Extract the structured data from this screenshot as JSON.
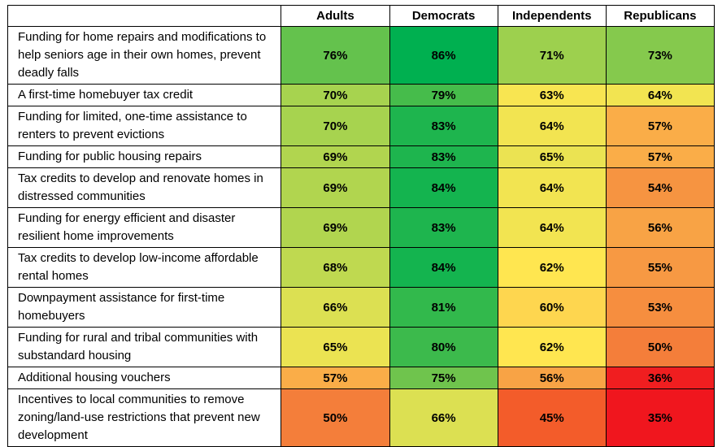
{
  "chart_data": {
    "type": "heatmap",
    "title": "",
    "value_suffix": "%",
    "columns": [
      "Adults",
      "Democrats",
      "Independents",
      "Republicans"
    ],
    "rows": [
      {
        "label": "Funding for home repairs and modifications to help seniors age in their own homes, prevent deadly falls",
        "values": [
          76,
          86,
          71,
          73
        ]
      },
      {
        "label": "A first-time homebuyer tax credit",
        "values": [
          70,
          79,
          63,
          64
        ]
      },
      {
        "label": "Funding for limited, one-time assistance to renters to prevent evictions",
        "values": [
          70,
          83,
          64,
          57
        ]
      },
      {
        "label": "Funding for public housing repairs",
        "values": [
          69,
          83,
          65,
          57
        ]
      },
      {
        "label": "Tax credits to develop and renovate homes in distressed communities",
        "values": [
          69,
          84,
          64,
          54
        ]
      },
      {
        "label": "Funding for energy efficient and disaster resilient home improvements",
        "values": [
          69,
          83,
          64,
          56
        ]
      },
      {
        "label": "Tax credits to develop low-income affordable rental homes",
        "values": [
          68,
          84,
          62,
          55
        ]
      },
      {
        "label": "Downpayment assistance for first-time homebuyers",
        "values": [
          66,
          81,
          60,
          53
        ]
      },
      {
        "label": "Funding for rural and tribal communities with substandard housing",
        "values": [
          65,
          80,
          62,
          50
        ]
      },
      {
        "label": "Additional housing vouchers",
        "values": [
          57,
          75,
          56,
          36
        ]
      },
      {
        "label": "Incentives to local communities to remove zoning/land-use restrictions that prevent new development",
        "values": [
          50,
          66,
          45,
          35
        ]
      }
    ],
    "color_scale": {
      "description": "red-yellow-green heatmap by percent support",
      "stops": [
        [
          35,
          [
            240,
            22,
            30
          ]
        ],
        [
          40,
          [
            241,
            60,
            38
          ]
        ],
        [
          45,
          [
            243,
            92,
            42
          ]
        ],
        [
          50,
          [
            244,
            126,
            58
          ]
        ],
        [
          55,
          [
            247,
            153,
            67
          ]
        ],
        [
          58,
          [
            251,
            183,
            74
          ]
        ],
        [
          60,
          [
            254,
            214,
            79
          ]
        ],
        [
          62,
          [
            255,
            230,
            80
          ]
        ],
        [
          65,
          [
            235,
            227,
            82
          ]
        ],
        [
          67,
          [
            205,
            220,
            81
          ]
        ],
        [
          69,
          [
            177,
            213,
            79
          ]
        ],
        [
          71,
          [
            157,
            208,
            78
          ]
        ],
        [
          73,
          [
            133,
            201,
            77
          ]
        ],
        [
          76,
          [
            100,
            194,
            77
          ]
        ],
        [
          79,
          [
            70,
            188,
            75
          ]
        ],
        [
          82,
          [
            40,
            183,
            77
          ]
        ],
        [
          86,
          [
            0,
            176,
            80
          ]
        ]
      ]
    },
    "layout": {
      "label_col_width": 336,
      "value_col_width": 133,
      "border_color": "#000000",
      "text_color": "#000000"
    }
  }
}
